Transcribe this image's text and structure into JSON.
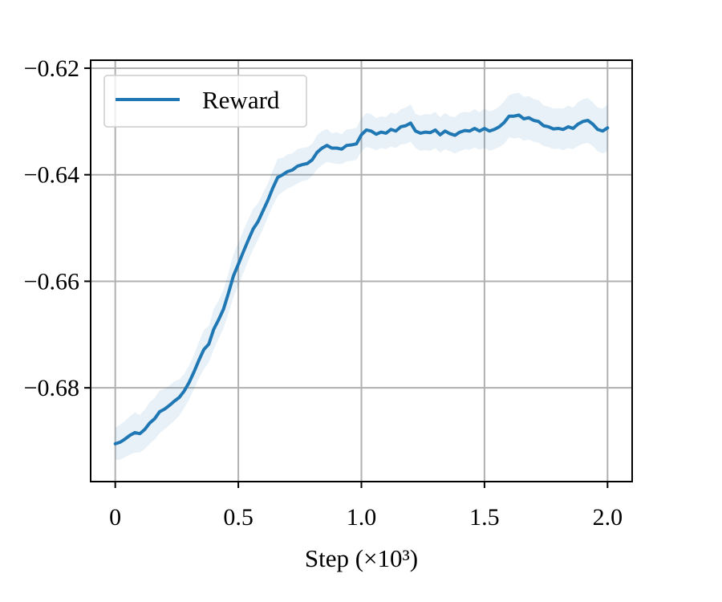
{
  "chart_data": {
    "type": "line",
    "title": "",
    "xlabel": "Step (×10³)",
    "ylabel": "",
    "xlim": [
      -0.1,
      2.1
    ],
    "ylim": [
      -0.6976,
      -0.6185
    ],
    "grid": true,
    "legend": {
      "placement": "top-left",
      "entries": [
        "Reward"
      ]
    },
    "x_ticks": [
      {
        "value": 0,
        "label": "0"
      },
      {
        "value": 0.5,
        "label": "0.5"
      },
      {
        "value": 1.0,
        "label": "1.0"
      },
      {
        "value": 1.5,
        "label": "1.5"
      },
      {
        "value": 2.0,
        "label": "2.0"
      }
    ],
    "y_ticks": [
      {
        "value": -0.62,
        "label": "−0.62"
      },
      {
        "value": -0.64,
        "label": "−0.64"
      },
      {
        "value": -0.66,
        "label": "−0.66"
      },
      {
        "value": -0.68,
        "label": "−0.68"
      }
    ],
    "series": [
      {
        "name": "Reward",
        "color": "#1f77b4",
        "band_color": "#1f77b4",
        "x": [
          0,
          0.02,
          0.04,
          0.06,
          0.08,
          0.1,
          0.12,
          0.14,
          0.16,
          0.18,
          0.2,
          0.22,
          0.24,
          0.26,
          0.28,
          0.3,
          0.32,
          0.34,
          0.36,
          0.38,
          0.4,
          0.42,
          0.44,
          0.46,
          0.48,
          0.5,
          0.52,
          0.54,
          0.56,
          0.58,
          0.6,
          0.62,
          0.64,
          0.66,
          0.68,
          0.7,
          0.72,
          0.74,
          0.76,
          0.78,
          0.8,
          0.82,
          0.84,
          0.86,
          0.88,
          0.9,
          0.92,
          0.94,
          0.96,
          0.98,
          1.0,
          1.02,
          1.04,
          1.06,
          1.08,
          1.1,
          1.12,
          1.14,
          1.16,
          1.18,
          1.2,
          1.22,
          1.24,
          1.26,
          1.28,
          1.3,
          1.32,
          1.34,
          1.36,
          1.38,
          1.4,
          1.42,
          1.44,
          1.46,
          1.48,
          1.5,
          1.52,
          1.54,
          1.56,
          1.58,
          1.6,
          1.62,
          1.64,
          1.66,
          1.68,
          1.7,
          1.72,
          1.74,
          1.76,
          1.78,
          1.8,
          1.82,
          1.84,
          1.86,
          1.88,
          1.9,
          1.92,
          1.94,
          1.96,
          1.98,
          2.0
        ],
        "y": [
          -0.6905,
          -0.6902,
          -0.6896,
          -0.6889,
          -0.6884,
          -0.6886,
          -0.6878,
          -0.6866,
          -0.6858,
          -0.6845,
          -0.684,
          -0.6833,
          -0.6825,
          -0.6818,
          -0.6806,
          -0.679,
          -0.677,
          -0.6748,
          -0.6728,
          -0.6718,
          -0.669,
          -0.6672,
          -0.6652,
          -0.6622,
          -0.659,
          -0.6568,
          -0.6545,
          -0.6523,
          -0.6502,
          -0.6488,
          -0.6468,
          -0.6448,
          -0.6425,
          -0.6405,
          -0.64,
          -0.6394,
          -0.6391,
          -0.6384,
          -0.6381,
          -0.6379,
          -0.6372,
          -0.6358,
          -0.635,
          -0.6345,
          -0.635,
          -0.635,
          -0.6352,
          -0.6345,
          -0.6344,
          -0.6342,
          -0.6325,
          -0.6316,
          -0.6318,
          -0.6324,
          -0.632,
          -0.6322,
          -0.6315,
          -0.6318,
          -0.631,
          -0.6308,
          -0.6303,
          -0.6318,
          -0.6322,
          -0.632,
          -0.6321,
          -0.6316,
          -0.6325,
          -0.6318,
          -0.6323,
          -0.6326,
          -0.632,
          -0.6317,
          -0.6318,
          -0.6313,
          -0.6318,
          -0.6313,
          -0.6318,
          -0.6315,
          -0.631,
          -0.6302,
          -0.629,
          -0.629,
          -0.6288,
          -0.6295,
          -0.6293,
          -0.6298,
          -0.63,
          -0.6308,
          -0.631,
          -0.6314,
          -0.6313,
          -0.6315,
          -0.631,
          -0.6313,
          -0.6305,
          -0.63,
          -0.6298,
          -0.6305,
          -0.6315,
          -0.6318,
          -0.6312
        ],
        "band_lower": [
          -0.6935,
          -0.6935,
          -0.693,
          -0.6925,
          -0.6922,
          -0.6921,
          -0.6915,
          -0.6905,
          -0.6897,
          -0.6885,
          -0.6878,
          -0.687,
          -0.6862,
          -0.6852,
          -0.6838,
          -0.6822,
          -0.6802,
          -0.6782,
          -0.6765,
          -0.6752,
          -0.6728,
          -0.6708,
          -0.6688,
          -0.666,
          -0.663,
          -0.6608,
          -0.6585,
          -0.6562,
          -0.654,
          -0.6522,
          -0.6502,
          -0.648,
          -0.6458,
          -0.644,
          -0.6432,
          -0.6426,
          -0.6422,
          -0.6416,
          -0.6412,
          -0.641,
          -0.6402,
          -0.639,
          -0.6382,
          -0.6376,
          -0.6378,
          -0.638,
          -0.638,
          -0.6375,
          -0.6374,
          -0.6372,
          -0.6356,
          -0.6348,
          -0.635,
          -0.6354,
          -0.635,
          -0.6352,
          -0.6347,
          -0.635,
          -0.6343,
          -0.6342,
          -0.6338,
          -0.635,
          -0.6355,
          -0.6354,
          -0.6355,
          -0.635,
          -0.6358,
          -0.6352,
          -0.6356,
          -0.636,
          -0.6356,
          -0.6352,
          -0.6353,
          -0.6349,
          -0.6353,
          -0.635,
          -0.6355,
          -0.6352,
          -0.6348,
          -0.6342,
          -0.633,
          -0.6332,
          -0.633,
          -0.6336,
          -0.6334,
          -0.6338,
          -0.634,
          -0.6346,
          -0.6348,
          -0.6352,
          -0.6351,
          -0.6354,
          -0.635,
          -0.6352,
          -0.6346,
          -0.6342,
          -0.634,
          -0.6346,
          -0.6356,
          -0.636,
          -0.6356
        ],
        "band_upper": [
          -0.6875,
          -0.6869,
          -0.6862,
          -0.6853,
          -0.6846,
          -0.6851,
          -0.6841,
          -0.6827,
          -0.6819,
          -0.6805,
          -0.6802,
          -0.6796,
          -0.6788,
          -0.6784,
          -0.6774,
          -0.6758,
          -0.6738,
          -0.6714,
          -0.6691,
          -0.6684,
          -0.6652,
          -0.6636,
          -0.6616,
          -0.6584,
          -0.655,
          -0.6528,
          -0.6505,
          -0.6484,
          -0.6464,
          -0.6454,
          -0.6434,
          -0.6416,
          -0.6392,
          -0.637,
          -0.6368,
          -0.6362,
          -0.636,
          -0.6352,
          -0.635,
          -0.6348,
          -0.6342,
          -0.6326,
          -0.6318,
          -0.6314,
          -0.6322,
          -0.632,
          -0.6324,
          -0.6315,
          -0.6314,
          -0.6312,
          -0.6294,
          -0.6284,
          -0.6286,
          -0.6294,
          -0.629,
          -0.6292,
          -0.6283,
          -0.6286,
          -0.6277,
          -0.6274,
          -0.6268,
          -0.6286,
          -0.6289,
          -0.6286,
          -0.6287,
          -0.6282,
          -0.6292,
          -0.6284,
          -0.629,
          -0.6292,
          -0.6284,
          -0.6282,
          -0.6283,
          -0.6277,
          -0.6283,
          -0.6276,
          -0.6281,
          -0.6278,
          -0.6272,
          -0.6262,
          -0.625,
          -0.6248,
          -0.6246,
          -0.6254,
          -0.6252,
          -0.6258,
          -0.626,
          -0.627,
          -0.6272,
          -0.6276,
          -0.6275,
          -0.6276,
          -0.627,
          -0.6274,
          -0.6264,
          -0.6258,
          -0.6256,
          -0.6264,
          -0.6274,
          -0.6276,
          -0.6268
        ]
      }
    ]
  }
}
